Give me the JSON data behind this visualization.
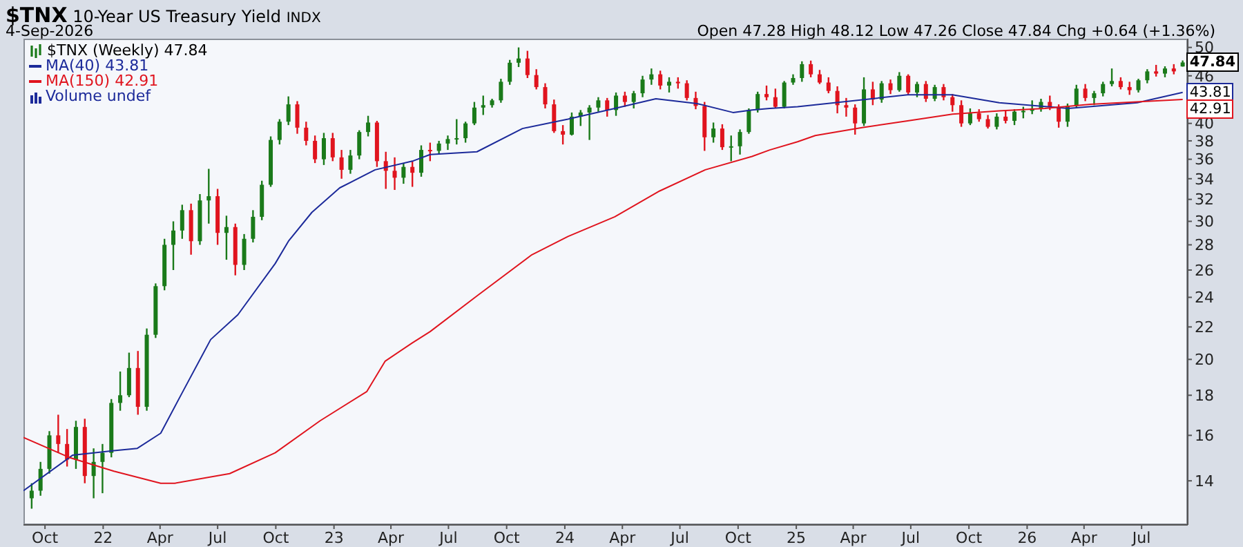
{
  "chart_data": {
    "type": "candlestick",
    "title": "$TNX 10-Year US Treasury Yield INDX",
    "subtitle": "4-Sep-2026",
    "annotations": [
      "Open 47.28 High 48.12 Low 47.26 Close 47.84 Chg +0.64 (+1.36%)",
      "Volume undef",
      {
        "text": "47.84",
        "x": "2026-09-04",
        "y": 47.84
      },
      {
        "text": "43.81",
        "x": "2026-09-04",
        "y": 43.81
      },
      {
        "text": "42.91",
        "x": "2026-09-04",
        "y": 42.91
      }
    ],
    "xlim": [
      "2021-08-28",
      "2026-09-12"
    ],
    "xticks": [
      {
        "value": "2021-10-01",
        "label": "Oct"
      },
      {
        "value": "2022-01-01",
        "label": "22"
      },
      {
        "value": "2022-04-01",
        "label": "Apr"
      },
      {
        "value": "2022-07-01",
        "label": "Jul"
      },
      {
        "value": "2022-10-01",
        "label": "Oct"
      },
      {
        "value": "2023-01-01",
        "label": "23"
      },
      {
        "value": "2023-04-01",
        "label": "Apr"
      },
      {
        "value": "2023-07-01",
        "label": "Jul"
      },
      {
        "value": "2023-10-01",
        "label": "Oct"
      },
      {
        "value": "2024-01-01",
        "label": "24"
      },
      {
        "value": "2024-04-01",
        "label": "Apr"
      },
      {
        "value": "2024-07-01",
        "label": "Jul"
      },
      {
        "value": "2024-10-01",
        "label": "Oct"
      },
      {
        "value": "2025-01-01",
        "label": "25"
      },
      {
        "value": "2025-04-01",
        "label": "Apr"
      },
      {
        "value": "2025-07-01",
        "label": "Jul"
      },
      {
        "value": "2025-10-01",
        "label": "Oct"
      },
      {
        "value": "2026-01-01",
        "label": "26"
      },
      {
        "value": "2026-04-01",
        "label": "Apr"
      },
      {
        "value": "2026-07-01",
        "label": "Jul"
      }
    ],
    "ylim": [
      12.3,
      51.3
    ],
    "yticks": [
      14,
      16,
      18,
      20,
      22,
      24,
      26,
      28,
      30,
      32,
      34,
      36,
      38,
      40,
      46,
      50
    ],
    "log": "y",
    "legend": "top left",
    "series": [
      {
        "name": "$TNX (Weekly) 47.84",
        "color": "#1a7a1a",
        "x": [
          "2021-09-10",
          "2021-09-24",
          "2021-10-08",
          "2021-10-22",
          "2021-11-05",
          "2021-11-19",
          "2021-12-03",
          "2021-12-17",
          "2021-12-31",
          "2022-01-14",
          "2022-01-28",
          "2022-02-11",
          "2022-02-25",
          "2022-03-11",
          "2022-03-25",
          "2022-04-08",
          "2022-04-22",
          "2022-05-06",
          "2022-05-20",
          "2022-06-03",
          "2022-06-17",
          "2022-07-01",
          "2022-07-15",
          "2022-07-29",
          "2022-08-12",
          "2022-08-26",
          "2022-09-09",
          "2022-09-23",
          "2022-10-07",
          "2022-10-21",
          "2022-11-04",
          "2022-11-18",
          "2022-12-02",
          "2022-12-16",
          "2022-12-30",
          "2023-01-13",
          "2023-01-27",
          "2023-02-10",
          "2023-02-24",
          "2023-03-10",
          "2023-03-24",
          "2023-04-07",
          "2023-04-21",
          "2023-05-05",
          "2023-05-19",
          "2023-06-02",
          "2023-06-16",
          "2023-06-30",
          "2023-07-14",
          "2023-07-28",
          "2023-08-11",
          "2023-08-25",
          "2023-09-08",
          "2023-09-22",
          "2023-10-06",
          "2023-10-20",
          "2023-11-03",
          "2023-11-17",
          "2023-12-01",
          "2023-12-15",
          "2023-12-29",
          "2024-01-12",
          "2024-01-26",
          "2024-02-09",
          "2024-02-23",
          "2024-03-08",
          "2024-03-22",
          "2024-04-05",
          "2024-04-19",
          "2024-05-03",
          "2024-05-17",
          "2024-05-31",
          "2024-06-14",
          "2024-06-28",
          "2024-07-12",
          "2024-07-26",
          "2024-08-09",
          "2024-08-23",
          "2024-09-06",
          "2024-09-20",
          "2024-10-04",
          "2024-10-18",
          "2024-11-01",
          "2024-11-15",
          "2024-11-29",
          "2024-12-13",
          "2024-12-27",
          "2025-01-10",
          "2025-01-24",
          "2025-02-07",
          "2025-02-21",
          "2025-03-07",
          "2025-03-21",
          "2025-04-04",
          "2025-04-18",
          "2025-05-02",
          "2025-05-16",
          "2025-05-30",
          "2025-06-13",
          "2025-06-27",
          "2025-07-11",
          "2025-07-25",
          "2025-08-08",
          "2025-08-22",
          "2025-09-05",
          "2025-09-19",
          "2025-10-03",
          "2025-10-17",
          "2025-10-31",
          "2025-11-14",
          "2025-11-28",
          "2025-12-12",
          "2025-12-26",
          "2026-01-09",
          "2026-01-23",
          "2026-02-06",
          "2026-02-20",
          "2026-03-06",
          "2026-03-20",
          "2026-04-03",
          "2026-04-17",
          "2026-05-01",
          "2026-05-15",
          "2026-05-29",
          "2026-06-12",
          "2026-06-26",
          "2026-07-10",
          "2026-07-24",
          "2026-08-07",
          "2026-08-21",
          "2026-09-04"
        ],
        "ohlc": [
          [
            13.3,
            13.9,
            12.9,
            13.6
          ],
          [
            13.6,
            14.8,
            13.4,
            14.5
          ],
          [
            14.5,
            16.2,
            14.3,
            16.0
          ],
          [
            16.0,
            17.0,
            15.2,
            15.6
          ],
          [
            15.6,
            16.3,
            14.6,
            14.9
          ],
          [
            14.9,
            16.7,
            14.5,
            16.4
          ],
          [
            16.4,
            16.8,
            13.9,
            14.2
          ],
          [
            14.2,
            15.4,
            13.3,
            14.8
          ],
          [
            14.8,
            15.6,
            13.5,
            15.2
          ],
          [
            15.2,
            17.8,
            15.0,
            17.6
          ],
          [
            17.6,
            19.3,
            17.2,
            18.0
          ],
          [
            18.0,
            20.4,
            17.9,
            19.5
          ],
          [
            19.5,
            20.5,
            17.0,
            17.4
          ],
          [
            17.4,
            21.9,
            17.2,
            21.5
          ],
          [
            21.5,
            25.0,
            21.3,
            24.8
          ],
          [
            24.8,
            28.5,
            24.5,
            28.0
          ],
          [
            28.0,
            30.0,
            26.0,
            29.2
          ],
          [
            29.2,
            31.5,
            28.5,
            31.0
          ],
          [
            31.0,
            31.6,
            27.2,
            28.3
          ],
          [
            28.3,
            32.5,
            28.0,
            31.9
          ],
          [
            31.9,
            35.0,
            29.8,
            32.3
          ],
          [
            32.3,
            33.0,
            28.0,
            29.0
          ],
          [
            29.0,
            30.5,
            26.8,
            29.5
          ],
          [
            29.5,
            29.8,
            25.6,
            26.4
          ],
          [
            26.4,
            28.9,
            26.0,
            28.5
          ],
          [
            28.5,
            31.0,
            28.2,
            30.4
          ],
          [
            30.4,
            33.8,
            30.1,
            33.4
          ],
          [
            33.4,
            38.5,
            33.2,
            38.1
          ],
          [
            38.1,
            40.5,
            37.6,
            40.2
          ],
          [
            40.2,
            43.3,
            39.8,
            42.3
          ],
          [
            42.3,
            42.7,
            38.8,
            39.5
          ],
          [
            39.5,
            40.2,
            37.5,
            38.0
          ],
          [
            38.0,
            38.6,
            35.6,
            36.0
          ],
          [
            36.0,
            38.9,
            35.4,
            38.3
          ],
          [
            38.3,
            38.9,
            35.8,
            36.2
          ],
          [
            36.2,
            37.0,
            34.0,
            34.9
          ],
          [
            34.9,
            37.0,
            34.5,
            36.4
          ],
          [
            36.4,
            39.2,
            36.0,
            39.0
          ],
          [
            39.0,
            40.9,
            38.5,
            40.1
          ],
          [
            40.1,
            40.3,
            35.2,
            35.8
          ],
          [
            35.8,
            36.8,
            33.0,
            34.8
          ],
          [
            34.8,
            36.2,
            32.9,
            34.1
          ],
          [
            34.1,
            35.6,
            33.5,
            35.2
          ],
          [
            35.2,
            35.8,
            33.2,
            34.6
          ],
          [
            34.6,
            37.5,
            34.2,
            37.0
          ],
          [
            37.0,
            37.8,
            35.8,
            36.9
          ],
          [
            36.9,
            38.0,
            36.5,
            37.7
          ],
          [
            37.7,
            38.6,
            37.0,
            38.2
          ],
          [
            38.2,
            40.5,
            37.6,
            38.3
          ],
          [
            38.3,
            40.2,
            37.8,
            40.0
          ],
          [
            40.0,
            42.6,
            39.8,
            41.9
          ],
          [
            41.9,
            43.4,
            41.0,
            42.2
          ],
          [
            42.2,
            43.0,
            41.9,
            42.8
          ],
          [
            42.8,
            45.6,
            42.5,
            45.2
          ],
          [
            45.2,
            48.2,
            44.8,
            47.8
          ],
          [
            47.8,
            50.0,
            47.2,
            48.4
          ],
          [
            48.4,
            49.5,
            45.7,
            46.1
          ],
          [
            46.1,
            46.9,
            44.2,
            44.5
          ],
          [
            44.5,
            45.0,
            41.8,
            42.3
          ],
          [
            42.3,
            42.9,
            38.9,
            39.1
          ],
          [
            39.1,
            39.8,
            37.6,
            38.7
          ],
          [
            38.7,
            41.3,
            38.6,
            40.8
          ],
          [
            40.8,
            41.6,
            39.7,
            41.3
          ],
          [
            41.3,
            42.2,
            38.1,
            41.9
          ],
          [
            41.9,
            43.2,
            41.4,
            42.8
          ],
          [
            42.8,
            43.1,
            40.8,
            41.6
          ],
          [
            41.6,
            43.8,
            40.9,
            43.4
          ],
          [
            43.4,
            43.9,
            42.0,
            42.6
          ],
          [
            42.6,
            44.0,
            41.8,
            43.7
          ],
          [
            43.7,
            46.0,
            43.2,
            45.5
          ],
          [
            45.5,
            47.0,
            44.8,
            46.2
          ],
          [
            46.2,
            46.7,
            44.2,
            44.7
          ],
          [
            44.7,
            45.8,
            43.8,
            45.2
          ],
          [
            45.2,
            45.8,
            44.3,
            45.0
          ],
          [
            45.0,
            45.4,
            42.8,
            43.1
          ],
          [
            43.1,
            43.9,
            41.7,
            42.1
          ],
          [
            42.1,
            42.6,
            36.9,
            38.4
          ],
          [
            38.4,
            40.1,
            37.8,
            39.4
          ],
          [
            39.4,
            39.9,
            37.0,
            37.3
          ],
          [
            37.3,
            38.6,
            35.8,
            37.4
          ],
          [
            37.4,
            39.3,
            36.5,
            39.0
          ],
          [
            39.0,
            41.8,
            38.8,
            41.6
          ],
          [
            41.6,
            43.9,
            41.3,
            43.6
          ],
          [
            43.6,
            44.7,
            42.8,
            43.2
          ],
          [
            43.2,
            44.3,
            41.8,
            42.0
          ],
          [
            42.0,
            45.3,
            41.8,
            45.1
          ],
          [
            45.1,
            46.2,
            44.8,
            45.7
          ],
          [
            45.7,
            48.0,
            45.2,
            47.6
          ],
          [
            47.6,
            48.1,
            45.8,
            46.2
          ],
          [
            46.2,
            46.8,
            44.9,
            45.1
          ],
          [
            45.1,
            45.8,
            43.7,
            44.0
          ],
          [
            44.0,
            44.6,
            41.2,
            42.2
          ],
          [
            42.2,
            43.1,
            40.8,
            41.9
          ],
          [
            41.9,
            42.3,
            38.7,
            40.0
          ],
          [
            40.0,
            45.8,
            39.7,
            44.2
          ],
          [
            44.2,
            45.2,
            42.2,
            42.9
          ],
          [
            42.9,
            45.3,
            42.5,
            45.0
          ],
          [
            45.0,
            45.5,
            43.6,
            44.1
          ],
          [
            44.1,
            46.5,
            43.9,
            46.0
          ],
          [
            46.0,
            46.2,
            43.5,
            43.8
          ],
          [
            43.8,
            45.2,
            43.2,
            44.9
          ],
          [
            44.9,
            45.3,
            42.6,
            43.0
          ],
          [
            43.0,
            44.8,
            42.7,
            44.5
          ],
          [
            44.5,
            44.9,
            42.8,
            43.2
          ],
          [
            43.2,
            43.6,
            41.4,
            42.2
          ],
          [
            42.2,
            42.8,
            39.6,
            40.0
          ],
          [
            40.0,
            41.8,
            39.8,
            41.2
          ],
          [
            41.2,
            41.7,
            40.2,
            40.5
          ],
          [
            40.5,
            41.0,
            39.4,
            39.6
          ],
          [
            39.6,
            41.2,
            39.3,
            40.8
          ],
          [
            40.8,
            41.5,
            40.0,
            40.3
          ],
          [
            40.3,
            41.7,
            39.8,
            41.4
          ],
          [
            41.4,
            42.0,
            40.6,
            41.5
          ],
          [
            41.5,
            42.8,
            41.1,
            41.8
          ],
          [
            41.8,
            43.0,
            41.4,
            42.6
          ],
          [
            42.6,
            43.4,
            41.6,
            42.0
          ],
          [
            42.0,
            42.3,
            39.5,
            40.2
          ],
          [
            40.2,
            42.4,
            39.6,
            42.1
          ],
          [
            42.1,
            44.8,
            41.9,
            44.3
          ],
          [
            44.3,
            44.9,
            42.7,
            43.1
          ],
          [
            43.1,
            44.0,
            42.2,
            43.7
          ],
          [
            43.7,
            45.2,
            43.3,
            44.9
          ],
          [
            44.9,
            47.0,
            44.6,
            45.3
          ],
          [
            45.3,
            45.8,
            44.2,
            44.5
          ],
          [
            44.5,
            45.2,
            43.5,
            44.1
          ],
          [
            44.1,
            45.6,
            43.8,
            45.4
          ],
          [
            45.4,
            46.9,
            45.0,
            46.6
          ],
          [
            46.6,
            47.5,
            45.9,
            46.3
          ],
          [
            46.3,
            47.3,
            45.8,
            47.0
          ],
          [
            47.0,
            47.6,
            46.2,
            46.6
          ],
          [
            47.28,
            48.12,
            47.26,
            47.84
          ]
        ],
        "colors": [
          "#1a7a1a",
          "#1a7a1a",
          "#1a7a1a",
          "#e0141e",
          "#e0141e",
          "#1a7a1a",
          "#e0141e",
          "#1a7a1a",
          "#1a7a1a",
          "#1a7a1a",
          "#1a7a1a",
          "#1a7a1a",
          "#e0141e",
          "#1a7a1a",
          "#1a7a1a",
          "#1a7a1a",
          "#1a7a1a",
          "#1a7a1a",
          "#e0141e",
          "#1a7a1a",
          "#1a7a1a",
          "#e0141e",
          "#1a7a1a",
          "#e0141e",
          "#1a7a1a",
          "#1a7a1a",
          "#1a7a1a",
          "#1a7a1a",
          "#1a7a1a",
          "#1a7a1a",
          "#e0141e",
          "#e0141e",
          "#e0141e",
          "#1a7a1a",
          "#e0141e",
          "#e0141e",
          "#1a7a1a",
          "#1a7a1a",
          "#1a7a1a",
          "#e0141e",
          "#e0141e",
          "#e0141e",
          "#1a7a1a",
          "#e0141e",
          "#1a7a1a",
          "#e0141e",
          "#1a7a1a",
          "#1a7a1a",
          "#1a7a1a",
          "#1a7a1a",
          "#1a7a1a",
          "#1a7a1a",
          "#1a7a1a",
          "#1a7a1a",
          "#1a7a1a",
          "#1a7a1a",
          "#e0141e",
          "#e0141e",
          "#e0141e",
          "#e0141e",
          "#e0141e",
          "#1a7a1a",
          "#1a7a1a",
          "#1a7a1a",
          "#1a7a1a",
          "#e0141e",
          "#1a7a1a",
          "#e0141e",
          "#1a7a1a",
          "#1a7a1a",
          "#1a7a1a",
          "#e0141e",
          "#1a7a1a",
          "#e0141e",
          "#e0141e",
          "#e0141e",
          "#e0141e",
          "#1a7a1a",
          "#e0141e",
          "#1a7a1a",
          "#1a7a1a",
          "#1a7a1a",
          "#1a7a1a",
          "#e0141e",
          "#e0141e",
          "#1a7a1a",
          "#1a7a1a",
          "#1a7a1a",
          "#e0141e",
          "#e0141e",
          "#e0141e",
          "#e0141e",
          "#e0141e",
          "#e0141e",
          "#1a7a1a",
          "#e0141e",
          "#1a7a1a",
          "#e0141e",
          "#1a7a1a",
          "#e0141e",
          "#1a7a1a",
          "#e0141e",
          "#1a7a1a",
          "#e0141e",
          "#e0141e",
          "#e0141e",
          "#1a7a1a",
          "#e0141e",
          "#e0141e",
          "#1a7a1a",
          "#e0141e",
          "#1a7a1a",
          "#1a7a1a",
          "#1a7a1a",
          "#1a7a1a",
          "#e0141e",
          "#e0141e",
          "#1a7a1a",
          "#1a7a1a",
          "#e0141e",
          "#1a7a1a",
          "#1a7a1a",
          "#1a7a1a",
          "#e0141e",
          "#e0141e",
          "#1a7a1a",
          "#1a7a1a",
          "#e0141e",
          "#1a7a1a",
          "#e0141e",
          "#1a7a1a"
        ]
      },
      {
        "name": "MA(40) 43.81",
        "type": "line",
        "color": "#1c2a9a",
        "x": [
          "2021-08-28",
          "2021-11-14",
          "2022-01-18",
          "2022-02-24",
          "2022-04-02",
          "2022-05-07",
          "2022-06-20",
          "2022-08-02",
          "2022-09-30",
          "2022-10-21",
          "2022-11-27",
          "2023-01-10",
          "2023-03-07",
          "2023-05-05",
          "2023-06-02",
          "2023-08-15",
          "2023-10-26",
          "2024-01-06",
          "2024-03-20",
          "2024-05-24",
          "2024-07-28",
          "2024-09-23",
          "2024-10-23",
          "2024-11-20",
          "2025-01-03",
          "2025-06-26",
          "2025-09-05",
          "2025-11-18",
          "2026-03-07",
          "2026-06-24",
          "2026-09-04"
        ],
        "values": [
          13.6,
          15.1,
          15.3,
          15.4,
          16.1,
          18.2,
          21.2,
          22.8,
          26.5,
          28.3,
          30.8,
          33.1,
          34.9,
          35.8,
          36.5,
          36.8,
          39.4,
          40.5,
          41.8,
          43.0,
          42.4,
          41.3,
          41.6,
          41.8,
          42.0,
          43.5,
          43.5,
          42.5,
          41.8,
          42.5,
          43.81
        ]
      },
      {
        "name": "MA(150) 42.91",
        "type": "line",
        "color": "#e0141e",
        "x": [
          "2021-08-28",
          "2021-11-08",
          "2022-01-18",
          "2022-04-02",
          "2022-04-24",
          "2022-07-20",
          "2022-09-30",
          "2022-12-10",
          "2023-02-22",
          "2023-03-23",
          "2023-05-05",
          "2023-06-02",
          "2023-08-15",
          "2023-11-10",
          "2024-01-06",
          "2024-03-20",
          "2024-05-30",
          "2024-08-10",
          "2024-10-23",
          "2024-11-20",
          "2025-01-03",
          "2025-01-31",
          "2025-04-15",
          "2025-06-26",
          "2025-09-05",
          "2025-11-18",
          "2026-01-29",
          "2026-04-11",
          "2026-09-04"
        ],
        "values": [
          15.9,
          15.0,
          14.4,
          13.9,
          13.9,
          14.3,
          15.2,
          16.7,
          18.2,
          19.9,
          21.0,
          21.7,
          24.1,
          27.2,
          28.7,
          30.4,
          32.8,
          34.9,
          36.3,
          37.0,
          37.9,
          38.6,
          39.5,
          40.3,
          41.1,
          41.5,
          41.8,
          42.3,
          42.91
        ]
      }
    ]
  }
}
